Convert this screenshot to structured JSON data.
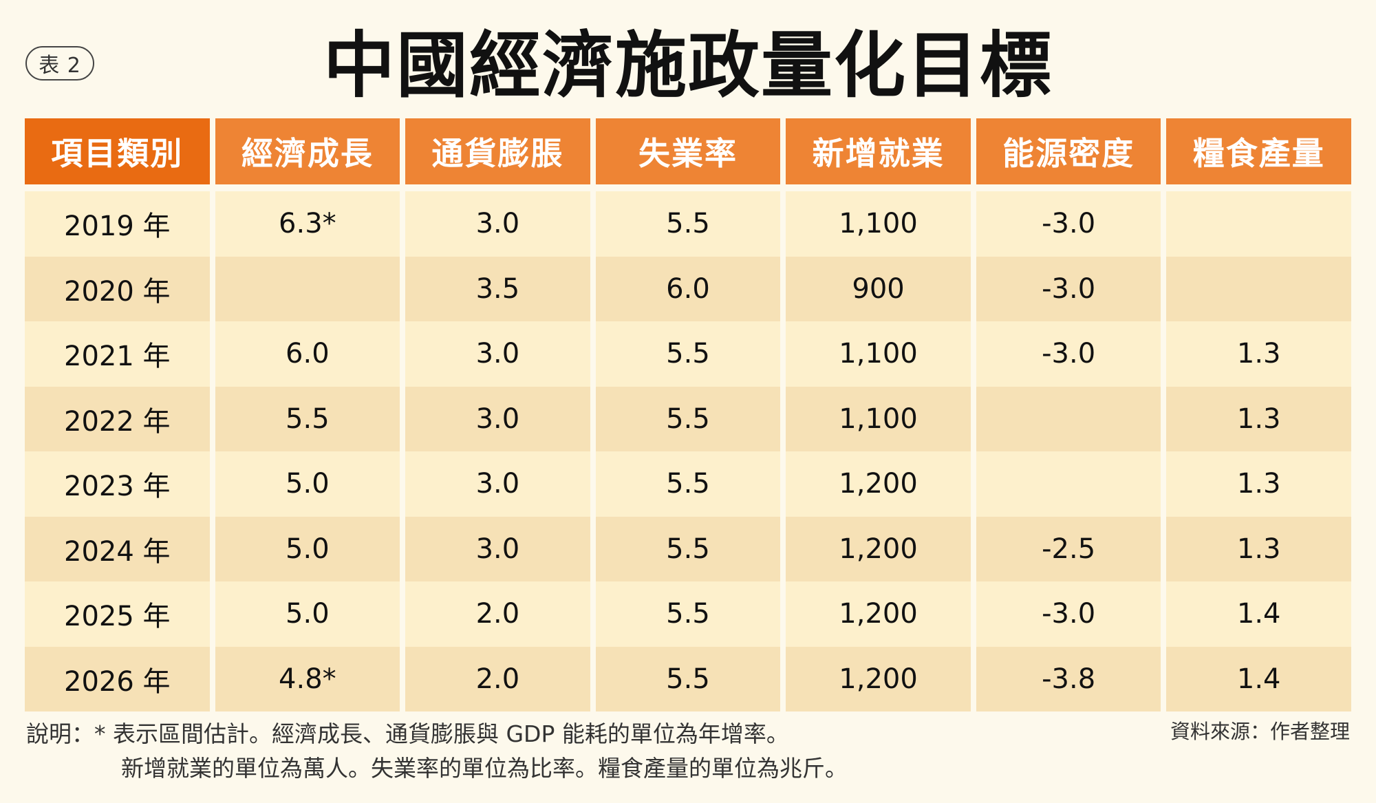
{
  "badge": "表 2",
  "title": "中國經濟施政量化目標",
  "headers": [
    "項目類別",
    "經濟成長",
    "通貨膨脹",
    "失業率",
    "新增就業",
    "能源密度",
    "糧食產量"
  ],
  "rows": [
    [
      "2019 年",
      "6.3*",
      "3.0",
      "5.5",
      "1,100",
      "-3.0",
      ""
    ],
    [
      "2020 年",
      "",
      "3.5",
      "6.0",
      "900",
      "-3.0",
      ""
    ],
    [
      "2021 年",
      "6.0",
      "3.0",
      "5.5",
      "1,100",
      "-3.0",
      "1.3"
    ],
    [
      "2022 年",
      "5.5",
      "3.0",
      "5.5",
      "1,100",
      "",
      "1.3"
    ],
    [
      "2023 年",
      "5.0",
      "3.0",
      "5.5",
      "1,200",
      "",
      "1.3"
    ],
    [
      "2024 年",
      "5.0",
      "3.0",
      "5.5",
      "1,200",
      "-2.5",
      "1.3"
    ],
    [
      "2025 年",
      "5.0",
      "2.0",
      "5.5",
      "1,200",
      "-3.0",
      "1.4"
    ],
    [
      "2026 年",
      "4.8*",
      "2.0",
      "5.5",
      "1,200",
      "-3.8",
      "1.4"
    ]
  ],
  "note": {
    "line1": "說明：* 表示區間估計。經濟成長、通貨膨脹與 GDP 能耗的單位為年增率。",
    "line2": "新增就業的單位為萬人。失業率的單位為比率。糧食產量的單位為兆斤。"
  },
  "source": "資料來源：作者整理",
  "colors": {
    "header_first": "#e96b12",
    "header": "#ee8434",
    "row_light": "#fdf0cc",
    "row_dark": "#f6e1b6",
    "background": "#fdf9ec"
  }
}
